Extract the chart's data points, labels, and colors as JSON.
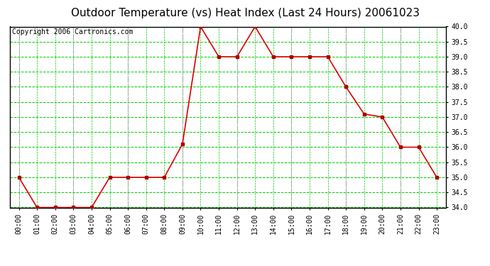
{
  "title": "Outdoor Temperature (vs) Heat Index (Last 24 Hours) 20061023",
  "copyright": "Copyright 2006 Cartronics.com",
  "x_labels": [
    "00:00",
    "01:00",
    "02:00",
    "03:00",
    "04:00",
    "05:00",
    "06:00",
    "07:00",
    "08:00",
    "09:00",
    "10:00",
    "11:00",
    "12:00",
    "13:00",
    "14:00",
    "15:00",
    "16:00",
    "17:00",
    "18:00",
    "19:00",
    "20:00",
    "21:00",
    "22:00",
    "23:00"
  ],
  "y_values": [
    35.0,
    34.0,
    34.0,
    34.0,
    34.0,
    35.0,
    35.0,
    35.0,
    35.0,
    36.1,
    40.0,
    39.0,
    39.0,
    40.0,
    39.0,
    39.0,
    39.0,
    39.0,
    38.0,
    37.1,
    37.0,
    36.0,
    36.0,
    35.0
  ],
  "ylim_min": 34.0,
  "ylim_max": 40.0,
  "ytick_step": 0.5,
  "line_color": "#dd0000",
  "marker_color": "#aa0000",
  "bg_color": "#ffffff",
  "plot_bg_color": "#ffffff",
  "grid_color_green": "#00cc00",
  "grid_color_gray": "#aaaaaa",
  "title_fontsize": 11,
  "copyright_fontsize": 7,
  "tick_fontsize": 7
}
